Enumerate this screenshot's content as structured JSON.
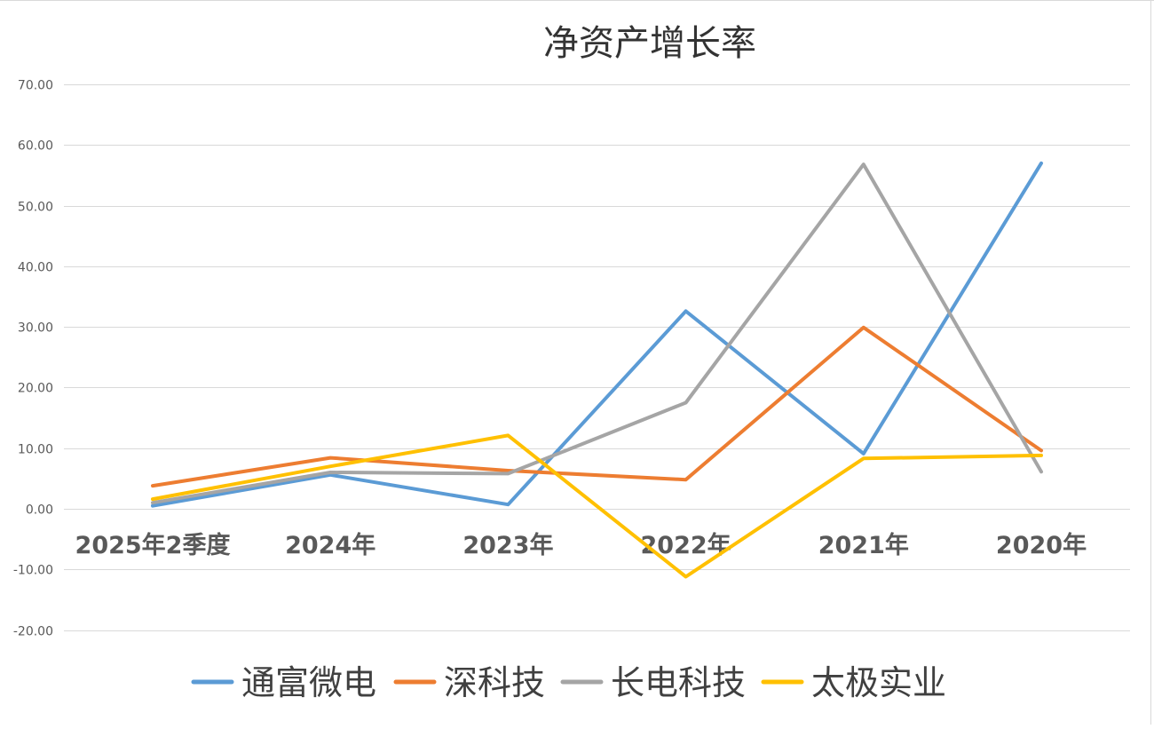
{
  "chart_data": {
    "type": "line",
    "title": "净资产增长率",
    "categories": [
      "2025年2季度",
      "2024年",
      "2023年",
      "2022年",
      "2021年",
      "2020年"
    ],
    "y_ticks": [
      "70.00",
      "60.00",
      "50.00",
      "40.00",
      "30.00",
      "20.00",
      "10.00",
      "0.00",
      "-10.00",
      "-20.00"
    ],
    "ylim": [
      -20,
      70
    ],
    "y_step": 10,
    "grid": true,
    "legend_position": "bottom",
    "series": [
      {
        "name": "通富微电",
        "color": "#5B9BD5",
        "values": [
          0.5,
          5.6,
          0.7,
          32.6,
          9.1,
          57.0
        ]
      },
      {
        "name": "深科技",
        "color": "#ED7D31",
        "values": [
          3.8,
          8.4,
          6.3,
          4.8,
          29.9,
          9.6
        ]
      },
      {
        "name": "长电科技",
        "color": "#A5A5A5",
        "values": [
          1.0,
          6.0,
          5.8,
          17.5,
          56.8,
          6.1
        ]
      },
      {
        "name": "太极实业",
        "color": "#FFC000",
        "values": [
          1.6,
          7.0,
          12.1,
          -11.2,
          8.3,
          8.8
        ]
      }
    ]
  }
}
